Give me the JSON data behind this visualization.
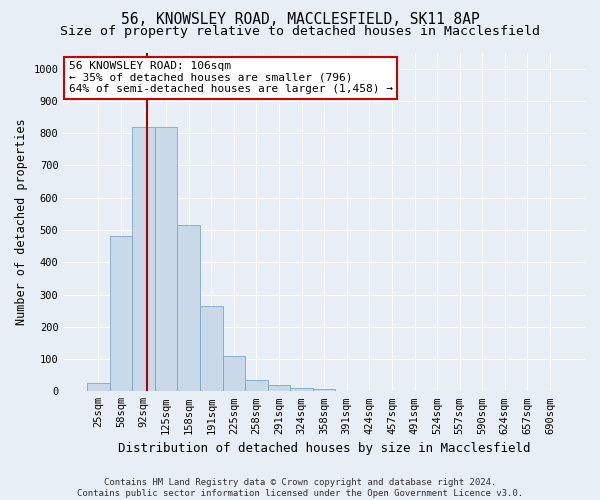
{
  "title_line1": "56, KNOWSLEY ROAD, MACCLESFIELD, SK11 8AP",
  "title_line2": "Size of property relative to detached houses in Macclesfield",
  "xlabel": "Distribution of detached houses by size in Macclesfield",
  "ylabel": "Number of detached properties",
  "footer_line1": "Contains HM Land Registry data © Crown copyright and database right 2024.",
  "footer_line2": "Contains public sector information licensed under the Open Government Licence v3.0.",
  "bar_labels": [
    "25sqm",
    "58sqm",
    "92sqm",
    "125sqm",
    "158sqm",
    "191sqm",
    "225sqm",
    "258sqm",
    "291sqm",
    "324sqm",
    "358sqm",
    "391sqm",
    "424sqm",
    "457sqm",
    "491sqm",
    "524sqm",
    "557sqm",
    "590sqm",
    "624sqm",
    "657sqm",
    "690sqm"
  ],
  "bar_values": [
    25,
    480,
    820,
    820,
    515,
    265,
    110,
    35,
    20,
    10,
    7,
    0,
    0,
    0,
    0,
    0,
    0,
    0,
    0,
    0,
    0
  ],
  "bar_color": "#c9d9e8",
  "bar_edge_color": "#7aa8cc",
  "ylim": [
    0,
    1050
  ],
  "yticks": [
    0,
    100,
    200,
    300,
    400,
    500,
    600,
    700,
    800,
    900,
    1000
  ],
  "background_color": "#e8eef5",
  "grid_color": "#ffffff",
  "vline_x_index": 2.15,
  "vline_color": "#aa0000",
  "annotation_text_line1": "56 KNOWSLEY ROAD: 106sqm",
  "annotation_text_line2": "← 35% of detached houses are smaller (796)",
  "annotation_text_line3": "64% of semi-detached houses are larger (1,458) →",
  "annotation_box_facecolor": "#ffffff",
  "annotation_box_edgecolor": "#cc0000",
  "title_fontsize": 10.5,
  "subtitle_fontsize": 9.5,
  "ylabel_fontsize": 8.5,
  "xlabel_fontsize": 9,
  "tick_fontsize": 7.5,
  "annotation_fontsize": 8,
  "footer_fontsize": 6.5
}
